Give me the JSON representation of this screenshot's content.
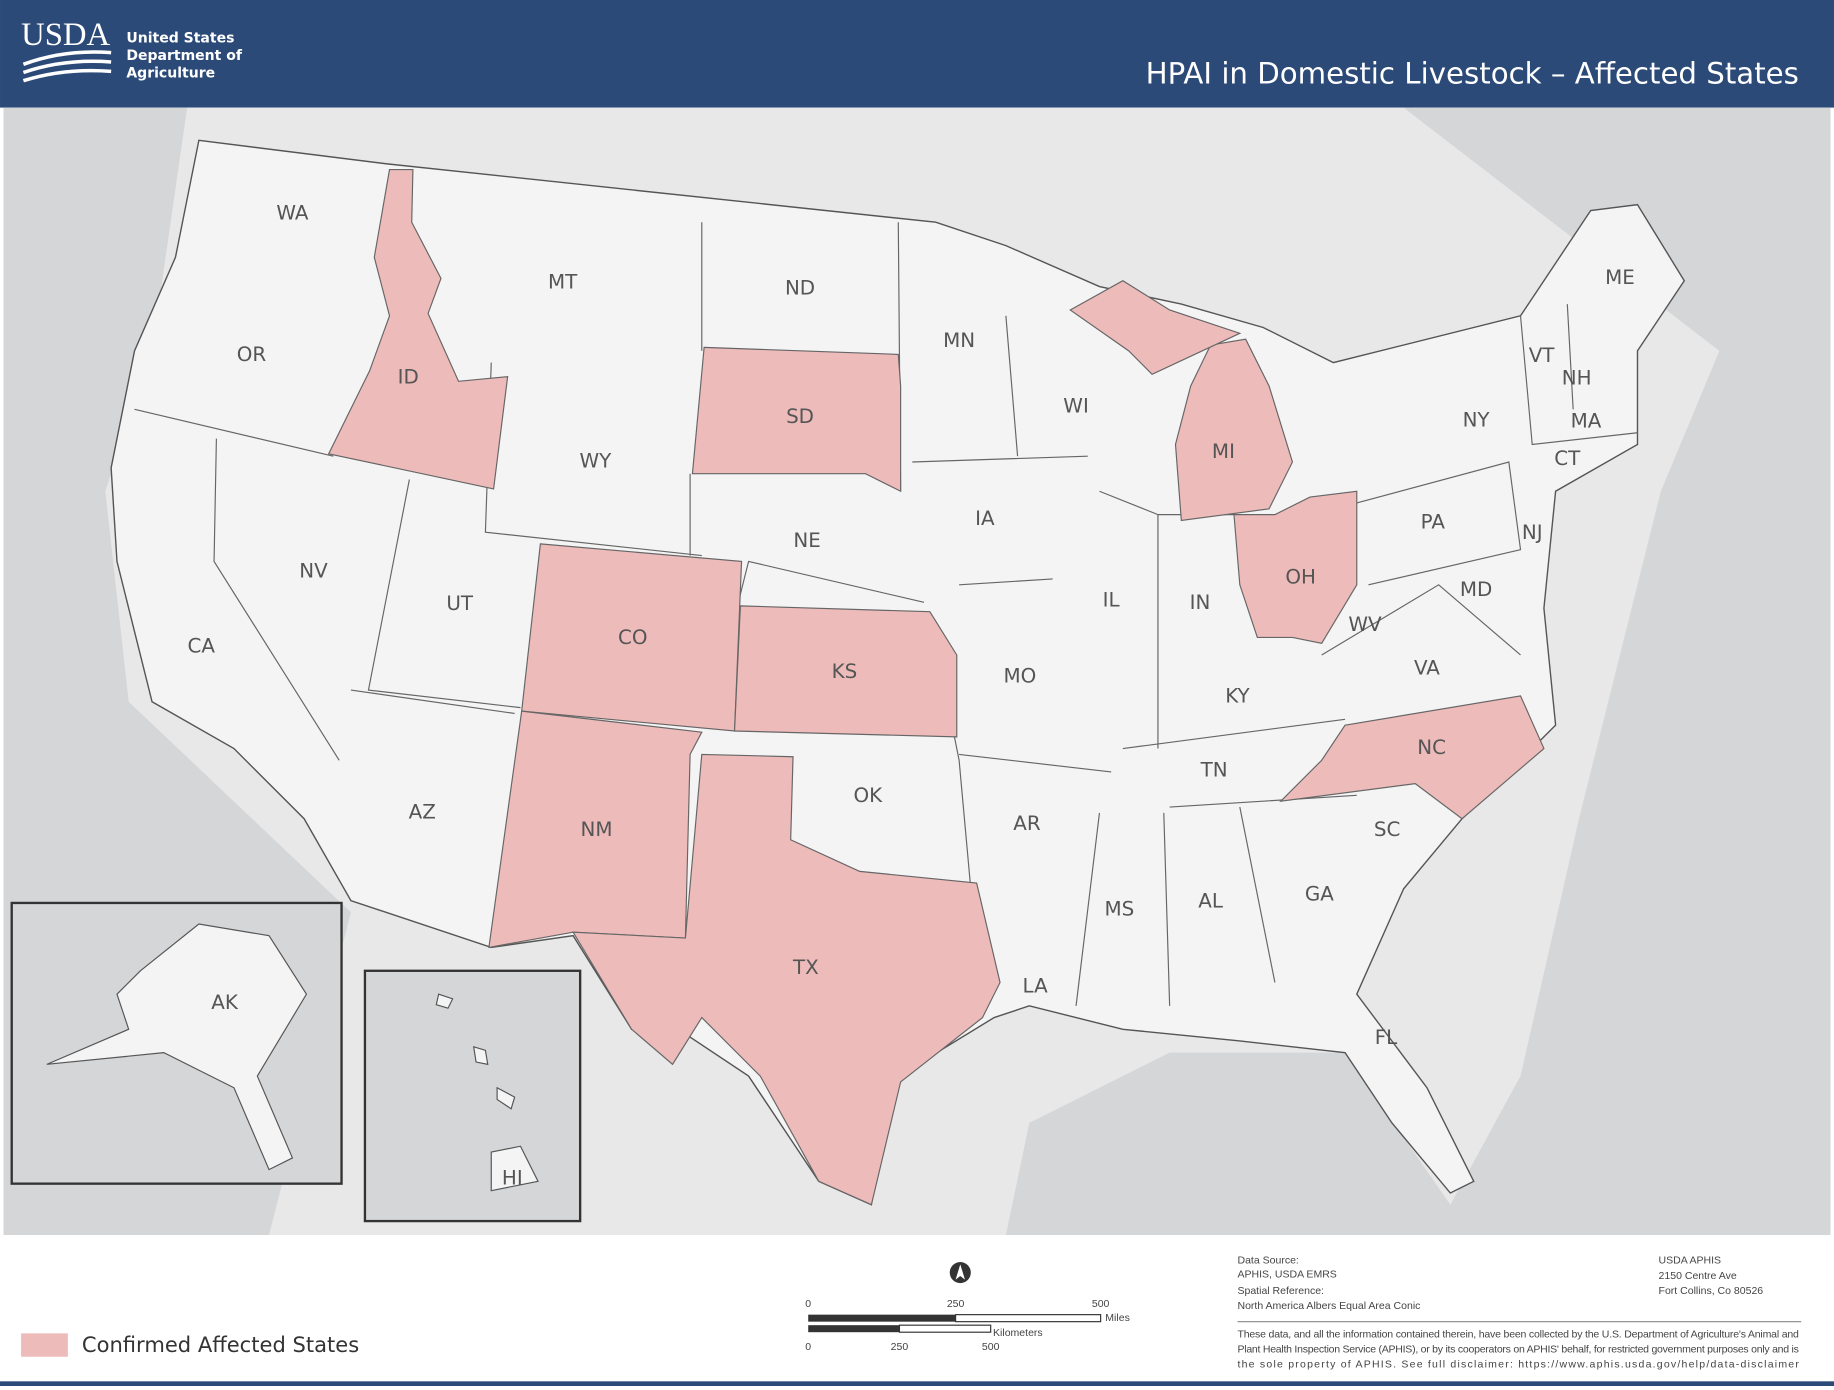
{
  "header": {
    "logo": "USDA",
    "agency": [
      "United States",
      "Department of",
      "Agriculture"
    ],
    "title": "HPAI in Domestic Livestock – Affected States"
  },
  "map": {
    "affected_color": "#eebbbb",
    "states": [
      {
        "abbr": "WA",
        "affected": false
      },
      {
        "abbr": "OR",
        "affected": false
      },
      {
        "abbr": "CA",
        "affected": false
      },
      {
        "abbr": "ID",
        "affected": true
      },
      {
        "abbr": "NV",
        "affected": false
      },
      {
        "abbr": "MT",
        "affected": false
      },
      {
        "abbr": "WY",
        "affected": false
      },
      {
        "abbr": "UT",
        "affected": false
      },
      {
        "abbr": "AZ",
        "affected": false
      },
      {
        "abbr": "CO",
        "affected": true
      },
      {
        "abbr": "NM",
        "affected": true
      },
      {
        "abbr": "ND",
        "affected": false
      },
      {
        "abbr": "SD",
        "affected": true
      },
      {
        "abbr": "NE",
        "affected": false
      },
      {
        "abbr": "KS",
        "affected": true
      },
      {
        "abbr": "OK",
        "affected": false
      },
      {
        "abbr": "TX",
        "affected": true
      },
      {
        "abbr": "MN",
        "affected": false
      },
      {
        "abbr": "IA",
        "affected": false
      },
      {
        "abbr": "MO",
        "affected": false
      },
      {
        "abbr": "AR",
        "affected": false
      },
      {
        "abbr": "LA",
        "affected": false
      },
      {
        "abbr": "WI",
        "affected": false
      },
      {
        "abbr": "IL",
        "affected": false
      },
      {
        "abbr": "MI",
        "affected": true
      },
      {
        "abbr": "IN",
        "affected": false
      },
      {
        "abbr": "OH",
        "affected": true
      },
      {
        "abbr": "KY",
        "affected": false
      },
      {
        "abbr": "TN",
        "affected": false
      },
      {
        "abbr": "MS",
        "affected": false
      },
      {
        "abbr": "AL",
        "affected": false
      },
      {
        "abbr": "GA",
        "affected": false
      },
      {
        "abbr": "FL",
        "affected": false
      },
      {
        "abbr": "SC",
        "affected": false
      },
      {
        "abbr": "NC",
        "affected": true
      },
      {
        "abbr": "VA",
        "affected": false
      },
      {
        "abbr": "WV",
        "affected": false
      },
      {
        "abbr": "PA",
        "affected": false
      },
      {
        "abbr": "NY",
        "affected": false
      },
      {
        "abbr": "VT",
        "affected": false
      },
      {
        "abbr": "NH",
        "affected": false
      },
      {
        "abbr": "ME",
        "affected": false
      },
      {
        "abbr": "MA",
        "affected": false
      },
      {
        "abbr": "CT",
        "affected": false
      },
      {
        "abbr": "NJ",
        "affected": false
      },
      {
        "abbr": "MD",
        "affected": false
      },
      {
        "abbr": "AK",
        "affected": false
      },
      {
        "abbr": "HI",
        "affected": false
      }
    ]
  },
  "legend": {
    "label": "Confirmed Affected States"
  },
  "scale_bar": {
    "miles": [
      "0",
      "250",
      "500"
    ],
    "miles_unit": "Miles",
    "km": [
      "0",
      "250",
      "500"
    ],
    "km_unit": "Kilometers"
  },
  "footer": {
    "source": [
      "Data Source:",
      "APHIS, USDA EMRS",
      "Spatial Reference:",
      "North America Albers Equal Area Conic"
    ],
    "address": [
      "USDA APHIS",
      "2150 Centre Ave",
      "Fort Collins, Co 80526"
    ],
    "disclaimer": [
      "These data, and all the information contained therein, have been collected by the U.S. Department of Agriculture's Animal and",
      "Plant Health Inspection Service (APHIS), or by its cooperators on APHIS' behalf, for restricted government purposes only and is",
      "the sole property of APHIS. See full disclaimer: https://www.aphis.usda.gov/help/data-disclaimer"
    ]
  }
}
